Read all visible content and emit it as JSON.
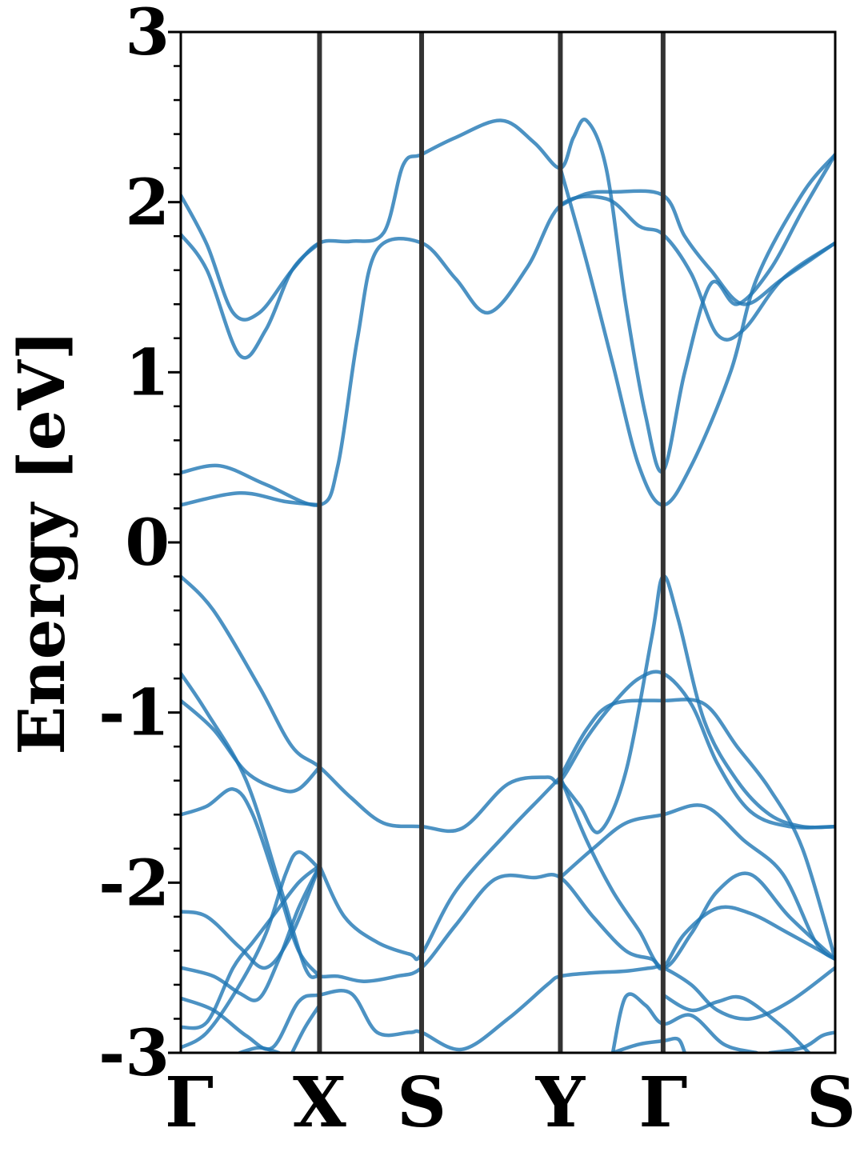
{
  "chart_data": {
    "type": "line",
    "title": "",
    "xlabel": "",
    "ylabel": "Energy [eV]",
    "ylim": [
      -3,
      3
    ],
    "yticks": [
      "-3",
      "-2",
      "-1",
      "0",
      "1",
      "2",
      "3"
    ],
    "ytick_values": [
      -3,
      -2,
      -1,
      0,
      1,
      2,
      3
    ],
    "x_range": [
      0,
      1
    ],
    "kpoints": [
      {
        "label": "Γ",
        "x": 0.0
      },
      {
        "label": "X",
        "x": 0.212
      },
      {
        "label": "S",
        "x": 0.368
      },
      {
        "label": "Y",
        "x": 0.58
      },
      {
        "label": "Γ",
        "x": 0.737
      },
      {
        "label": "S",
        "x": 1.0
      }
    ],
    "line_color": "#1f77b4",
    "vline_color": "#333333",
    "grid": false,
    "series": [
      {
        "points": [
          [
            0,
            0.41
          ],
          [
            0.06,
            0.45
          ],
          [
            0.13,
            0.34
          ],
          [
            0.212,
            0.22
          ],
          [
            0.24,
            0.45
          ],
          [
            0.27,
            1.2
          ],
          [
            0.3,
            1.72
          ],
          [
            0.368,
            1.76
          ],
          [
            0.42,
            1.55
          ],
          [
            0.47,
            1.35
          ],
          [
            0.53,
            1.62
          ],
          [
            0.58,
            1.98
          ],
          [
            0.65,
            2.02
          ],
          [
            0.7,
            1.86
          ],
          [
            0.737,
            1.81
          ],
          [
            0.78,
            1.58
          ],
          [
            0.82,
            1.22
          ],
          [
            0.86,
            1.25
          ],
          [
            0.92,
            1.55
          ],
          [
            1.0,
            1.76
          ]
        ]
      },
      {
        "points": [
          [
            0,
            0.22
          ],
          [
            0.09,
            0.29
          ],
          [
            0.16,
            0.24
          ],
          [
            0.212,
            0.22
          ]
        ]
      },
      {
        "points": [
          [
            0,
            2.04
          ],
          [
            0.04,
            1.75
          ],
          [
            0.08,
            1.35
          ],
          [
            0.12,
            1.35
          ],
          [
            0.17,
            1.6
          ],
          [
            0.212,
            1.76
          ],
          [
            0.26,
            1.77
          ],
          [
            0.31,
            1.82
          ],
          [
            0.34,
            2.22
          ],
          [
            0.368,
            2.28
          ],
          [
            0.42,
            2.38
          ],
          [
            0.49,
            2.48
          ],
          [
            0.54,
            2.35
          ],
          [
            0.58,
            2.2
          ],
          [
            0.6,
            2.38
          ],
          [
            0.62,
            2.48
          ],
          [
            0.65,
            2.2
          ],
          [
            0.68,
            1.4
          ],
          [
            0.71,
            0.75
          ],
          [
            0.737,
            0.42
          ],
          [
            0.77,
            1.0
          ],
          [
            0.81,
            1.52
          ],
          [
            0.85,
            1.4
          ],
          [
            0.9,
            1.6
          ],
          [
            0.95,
            1.95
          ],
          [
            1.0,
            2.28
          ]
        ]
      },
      {
        "points": [
          [
            0,
            1.81
          ],
          [
            0.04,
            1.6
          ],
          [
            0.09,
            1.1
          ],
          [
            0.13,
            1.25
          ],
          [
            0.17,
            1.6
          ],
          [
            0.212,
            1.76
          ]
        ]
      },
      {
        "points": [
          [
            0.58,
            2.2
          ],
          [
            0.62,
            1.65
          ],
          [
            0.66,
            1.05
          ],
          [
            0.7,
            0.45
          ],
          [
            0.737,
            0.22
          ],
          [
            0.78,
            0.45
          ],
          [
            0.84,
            1.0
          ],
          [
            0.88,
            1.55
          ],
          [
            0.95,
            2.05
          ],
          [
            1.0,
            2.28
          ]
        ]
      },
      {
        "points": [
          [
            0.58,
            1.98
          ],
          [
            0.62,
            2.05
          ],
          [
            0.66,
            2.06
          ],
          [
            0.737,
            2.04
          ],
          [
            0.77,
            1.8
          ],
          [
            0.81,
            1.6
          ],
          [
            0.86,
            1.4
          ],
          [
            0.92,
            1.55
          ],
          [
            1.0,
            1.76
          ]
        ]
      },
      {
        "points": [
          [
            0,
            -0.2
          ],
          [
            0.05,
            -0.4
          ],
          [
            0.12,
            -0.85
          ],
          [
            0.17,
            -1.2
          ],
          [
            0.212,
            -1.32
          ],
          [
            0.26,
            -1.5
          ],
          [
            0.31,
            -1.65
          ],
          [
            0.368,
            -1.67
          ],
          [
            0.43,
            -1.68
          ],
          [
            0.5,
            -1.42
          ],
          [
            0.56,
            -1.38
          ],
          [
            0.58,
            -1.4
          ],
          [
            0.62,
            -1.15
          ],
          [
            0.66,
            -0.95
          ],
          [
            0.7,
            -0.8
          ],
          [
            0.737,
            -0.77
          ],
          [
            0.78,
            -0.95
          ],
          [
            0.82,
            -1.3
          ],
          [
            0.87,
            -1.58
          ],
          [
            0.93,
            -1.67
          ],
          [
            1.0,
            -1.67
          ]
        ]
      },
      {
        "points": [
          [
            0,
            -0.77
          ],
          [
            0.04,
            -1.0
          ],
          [
            0.1,
            -1.4
          ],
          [
            0.15,
            -2.0
          ],
          [
            0.19,
            -2.5
          ],
          [
            0.212,
            -2.55
          ],
          [
            0.24,
            -2.55
          ],
          [
            0.28,
            -2.58
          ],
          [
            0.33,
            -2.55
          ],
          [
            0.368,
            -2.5
          ],
          [
            0.42,
            -2.25
          ],
          [
            0.48,
            -1.98
          ],
          [
            0.54,
            -1.97
          ],
          [
            0.58,
            -1.97
          ],
          [
            0.63,
            -2.2
          ],
          [
            0.68,
            -2.4
          ],
          [
            0.72,
            -2.45
          ],
          [
            0.737,
            -2.5
          ],
          [
            0.77,
            -2.3
          ],
          [
            0.82,
            -2.15
          ],
          [
            0.87,
            -2.18
          ],
          [
            0.93,
            -2.3
          ],
          [
            1.0,
            -2.45
          ]
        ]
      },
      {
        "points": [
          [
            0,
            -0.93
          ],
          [
            0.05,
            -1.1
          ],
          [
            0.1,
            -1.35
          ],
          [
            0.15,
            -1.45
          ],
          [
            0.18,
            -1.45
          ],
          [
            0.212,
            -1.32
          ]
        ]
      },
      {
        "points": [
          [
            0.58,
            -1.4
          ],
          [
            0.61,
            -1.55
          ],
          [
            0.64,
            -1.7
          ],
          [
            0.68,
            -1.35
          ],
          [
            0.72,
            -0.55
          ],
          [
            0.737,
            -0.2
          ],
          [
            0.76,
            -0.45
          ],
          [
            0.8,
            -1.05
          ],
          [
            0.85,
            -1.4
          ],
          [
            0.9,
            -1.6
          ],
          [
            0.95,
            -1.67
          ],
          [
            1.0,
            -1.67
          ]
        ]
      },
      {
        "points": [
          [
            0.58,
            -1.38
          ],
          [
            0.62,
            -1.1
          ],
          [
            0.66,
            -0.95
          ],
          [
            0.737,
            -0.93
          ],
          [
            0.8,
            -0.95
          ],
          [
            0.85,
            -1.2
          ],
          [
            0.9,
            -1.45
          ],
          [
            0.95,
            -1.8
          ],
          [
            1.0,
            -2.45
          ]
        ]
      },
      {
        "points": [
          [
            0,
            -1.6
          ],
          [
            0.04,
            -1.55
          ],
          [
            0.08,
            -1.45
          ],
          [
            0.11,
            -1.6
          ],
          [
            0.15,
            -2.05
          ],
          [
            0.18,
            -2.4
          ],
          [
            0.212,
            -2.55
          ]
        ]
      },
      {
        "points": [
          [
            0.212,
            -1.9
          ],
          [
            0.25,
            -2.2
          ],
          [
            0.3,
            -2.35
          ],
          [
            0.35,
            -2.42
          ],
          [
            0.368,
            -2.42
          ],
          [
            0.42,
            -2.05
          ],
          [
            0.5,
            -1.7
          ],
          [
            0.55,
            -1.5
          ],
          [
            0.58,
            -1.38
          ]
        ]
      },
      {
        "points": [
          [
            0.58,
            -1.38
          ],
          [
            0.62,
            -1.75
          ],
          [
            0.66,
            -2.05
          ],
          [
            0.7,
            -2.28
          ],
          [
            0.737,
            -2.5
          ],
          [
            0.78,
            -2.3
          ],
          [
            0.82,
            -2.05
          ],
          [
            0.87,
            -1.95
          ],
          [
            0.93,
            -2.2
          ],
          [
            1.0,
            -2.45
          ]
        ]
      },
      {
        "points": [
          [
            0.58,
            -1.97
          ],
          [
            0.63,
            -1.8
          ],
          [
            0.68,
            -1.65
          ],
          [
            0.737,
            -1.6
          ],
          [
            0.8,
            -1.55
          ],
          [
            0.86,
            -1.75
          ],
          [
            0.92,
            -1.95
          ],
          [
            0.97,
            -2.35
          ],
          [
            1.0,
            -2.45
          ]
        ]
      },
      {
        "points": [
          [
            0,
            -2.17
          ],
          [
            0.04,
            -2.2
          ],
          [
            0.09,
            -2.38
          ],
          [
            0.13,
            -2.5
          ],
          [
            0.17,
            -2.3
          ],
          [
            0.212,
            -1.9
          ]
        ]
      },
      {
        "points": [
          [
            0,
            -2.5
          ],
          [
            0.05,
            -2.55
          ],
          [
            0.09,
            -2.65
          ],
          [
            0.12,
            -2.68
          ],
          [
            0.15,
            -2.45
          ],
          [
            0.18,
            -2.15
          ],
          [
            0.212,
            -1.9
          ]
        ]
      },
      {
        "points": [
          [
            0,
            -2.68
          ],
          [
            0.05,
            -2.75
          ],
          [
            0.1,
            -2.9
          ],
          [
            0.14,
            -2.97
          ],
          [
            0.18,
            -2.7
          ],
          [
            0.212,
            -2.66
          ],
          [
            0.26,
            -2.65
          ],
          [
            0.3,
            -2.88
          ],
          [
            0.35,
            -2.88
          ],
          [
            0.368,
            -2.88
          ],
          [
            0.43,
            -2.98
          ],
          [
            0.5,
            -2.8
          ],
          [
            0.56,
            -2.6
          ],
          [
            0.58,
            -2.55
          ],
          [
            0.63,
            -2.53
          ],
          [
            0.68,
            -2.52
          ],
          [
            0.72,
            -2.5
          ],
          [
            0.737,
            -2.5
          ],
          [
            0.78,
            -2.6
          ],
          [
            0.82,
            -2.75
          ],
          [
            0.87,
            -2.8
          ],
          [
            0.93,
            -2.7
          ],
          [
            1.0,
            -2.5
          ]
        ]
      },
      {
        "points": [
          [
            0,
            -2.85
          ],
          [
            0.04,
            -2.82
          ],
          [
            0.08,
            -2.5
          ],
          [
            0.11,
            -2.35
          ],
          [
            0.14,
            -2.2
          ],
          [
            0.18,
            -2.0
          ],
          [
            0.212,
            -1.9
          ]
        ]
      },
      {
        "points": [
          [
            0,
            -2.97
          ],
          [
            0.04,
            -2.88
          ],
          [
            0.09,
            -2.6
          ],
          [
            0.13,
            -2.3
          ],
          [
            0.16,
            -1.95
          ],
          [
            0.18,
            -1.82
          ],
          [
            0.212,
            -1.92
          ]
        ]
      },
      {
        "points": [
          [
            0.66,
            -3.0
          ],
          [
            0.68,
            -2.67
          ],
          [
            0.71,
            -2.72
          ],
          [
            0.737,
            -2.83
          ],
          [
            0.78,
            -2.78
          ],
          [
            0.83,
            -2.95
          ],
          [
            0.88,
            -3.0
          ]
        ]
      },
      {
        "points": [
          [
            0.66,
            -3.0
          ],
          [
            0.7,
            -2.95
          ],
          [
            0.737,
            -2.93
          ],
          [
            0.76,
            -2.92
          ],
          [
            0.77,
            -3.0
          ]
        ]
      },
      {
        "points": [
          [
            0.737,
            -2.66
          ],
          [
            0.78,
            -2.75
          ],
          [
            0.82,
            -2.7
          ],
          [
            0.86,
            -2.68
          ],
          [
            0.92,
            -2.85
          ],
          [
            0.96,
            -3.0
          ]
        ]
      },
      {
        "points": [
          [
            0.9,
            -3.0
          ],
          [
            0.95,
            -2.97
          ],
          [
            0.98,
            -2.9
          ],
          [
            1.0,
            -2.88
          ]
        ]
      },
      {
        "points": [
          [
            0.09,
            -3.0
          ],
          [
            0.12,
            -2.97
          ],
          [
            0.15,
            -3.0
          ]
        ]
      },
      {
        "points": [
          [
            0.17,
            -3.0
          ],
          [
            0.19,
            -2.85
          ],
          [
            0.212,
            -2.72
          ]
        ]
      }
    ]
  }
}
